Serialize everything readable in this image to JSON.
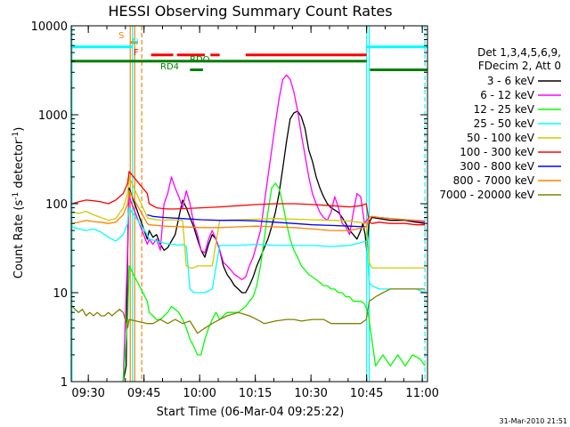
{
  "chart_data": {
    "type": "line",
    "title": "HESSI Observing Summary Count Rates",
    "xlabel": "Start Time (06-Mar-04 09:25:22)",
    "ylabel_main": "Count Rate (s",
    "ylabel_sup1": "-1",
    "ylabel_mid": " detector",
    "ylabel_sup2": "-1",
    "ylabel_end": ")",
    "x_unit": "minutes since 09:25:22",
    "xlim": [
      0,
      96
    ],
    "ylim": [
      1,
      10000
    ],
    "y_scale": "log",
    "grid": false,
    "x_ticks": [
      {
        "value": 4.6,
        "label": "09:30"
      },
      {
        "value": 19.6,
        "label": "09:45"
      },
      {
        "value": 34.6,
        "label": "10:00"
      },
      {
        "value": 49.6,
        "label": "10:15"
      },
      {
        "value": 64.6,
        "label": "10:30"
      },
      {
        "value": 79.6,
        "label": "10:45"
      },
      {
        "value": 94.6,
        "label": "11:00"
      }
    ],
    "y_ticks": [
      {
        "value": 1,
        "label": "1"
      },
      {
        "value": 10,
        "label": "10"
      },
      {
        "value": 100,
        "label": "100"
      },
      {
        "value": 1000,
        "label": "1000"
      },
      {
        "value": 10000,
        "label": "10000"
      }
    ],
    "legend": {
      "placement": "right",
      "header": [
        "Det 1,3,4,5,6,9,",
        "FDecim 2, Att 0"
      ],
      "entries": [
        {
          "label": "3 - 6 keV",
          "color": "#000000"
        },
        {
          "label": "6 - 12 keV",
          "color": "#ff00ff"
        },
        {
          "label": "12 - 25 keV",
          "color": "#00ff00"
        },
        {
          "label": "25 - 50 keV",
          "color": "#00ffff"
        },
        {
          "label": "50 - 100 keV",
          "color": "#cccc00"
        },
        {
          "label": "100 - 300 keV",
          "color": "#ff0000"
        },
        {
          "label": "300 - 800 keV",
          "color": "#0000ff"
        },
        {
          "label": "800 - 7000 keV",
          "color": "#ff8000"
        },
        {
          "label": "7000 - 20000 keV",
          "color": "#808000"
        }
      ]
    },
    "flags": [
      {
        "label": "S",
        "color": "#ff8000"
      },
      {
        "label": "N",
        "color": "#00ffff"
      },
      {
        "label": "F",
        "color": "#ff0000"
      },
      {
        "label": "RDO",
        "color": "#008000"
      },
      {
        "label": "RD4",
        "color": "#008000"
      }
    ],
    "flag_bars": {
      "N": {
        "color": "#00ffff",
        "y": 5800,
        "segments": [
          [
            0,
            16.5
          ],
          [
            79.6,
            96
          ]
        ]
      },
      "S": {
        "color": "#ff8000",
        "y": 6500,
        "segments": [
          [
            16.0,
            18.0
          ]
        ]
      },
      "F": {
        "color": "#ff0000",
        "y": 4700,
        "segments": [
          [
            21.5,
            27.5
          ],
          [
            28.5,
            36
          ],
          [
            37.5,
            40
          ],
          [
            47,
            79.6
          ]
        ]
      },
      "RDO": {
        "color": "#008000",
        "y": 4000,
        "segments": [
          [
            0,
            79.6
          ]
        ]
      },
      "RD4": {
        "color": "#008000",
        "y": 3200,
        "segments": [
          [
            32,
            35.5
          ],
          [
            80.5,
            96
          ]
        ]
      }
    },
    "vertical_lines": [
      {
        "x": 0.2,
        "color": "#00ffff",
        "dashed": false
      },
      {
        "x": 15.9,
        "color": "#ff8000",
        "dashed": false
      },
      {
        "x": 16.5,
        "color": "#00ffff",
        "dashed": false
      },
      {
        "x": 17.1,
        "color": "#ff8000",
        "dashed": false
      },
      {
        "x": 19.0,
        "color": "#ff8000",
        "dashed": true
      },
      {
        "x": 79.6,
        "color": "#00ffff",
        "dashed": false
      },
      {
        "x": 80.3,
        "color": "#00ffff",
        "dashed": false
      },
      {
        "x": 95.3,
        "color": "#00ffff",
        "dashed": true
      }
    ],
    "series": [
      {
        "name": "3 - 6 keV",
        "color": "#000000",
        "x": [
          14,
          14.8,
          15.3,
          15.6,
          20.5,
          21,
          22,
          23,
          24,
          25,
          26,
          27,
          28,
          29,
          30,
          31,
          32,
          33,
          34,
          35,
          36,
          37,
          38,
          39,
          40,
          41,
          42,
          43,
          44,
          45,
          46,
          47,
          48,
          49,
          50,
          51,
          52,
          53,
          54,
          55,
          56,
          57,
          58,
          59,
          60,
          61,
          62,
          63,
          64,
          65,
          66,
          67,
          68,
          69,
          70,
          71,
          72,
          73,
          74,
          75,
          76,
          77,
          78,
          78.6,
          79.2,
          79.6,
          80.2,
          81,
          83,
          86,
          90,
          93,
          95.3
        ],
        "y": [
          1,
          1.5,
          60,
          150,
          40,
          50,
          42,
          45,
          35,
          30,
          32,
          38,
          45,
          70,
          110,
          90,
          70,
          55,
          40,
          30,
          25,
          35,
          45,
          40,
          30,
          20,
          16,
          14,
          12,
          11,
          10,
          10,
          12,
          15,
          20,
          25,
          32,
          40,
          55,
          80,
          130,
          250,
          500,
          900,
          1050,
          1100,
          950,
          700,
          400,
          300,
          200,
          150,
          120,
          100,
          90,
          85,
          80,
          70,
          60,
          50,
          45,
          40,
          50,
          60,
          45,
          30,
          60,
          70,
          68,
          65,
          65,
          62,
          60
        ]
      },
      {
        "name": "6 - 12 keV",
        "color": "#ff00ff",
        "x": [
          14,
          15.2,
          15.6,
          20.5,
          21,
          22,
          23,
          24,
          25,
          26,
          27,
          28,
          29,
          30,
          31,
          32,
          33,
          34,
          35,
          36,
          37,
          38,
          39,
          40,
          41,
          42,
          43,
          44,
          45,
          46,
          47,
          48,
          49,
          50,
          51,
          52,
          53,
          54,
          55,
          56,
          57,
          58,
          59,
          60,
          61,
          62,
          63,
          64,
          65,
          66,
          67,
          68,
          69,
          70,
          71,
          72,
          73,
          74,
          75,
          76,
          77,
          78,
          79,
          80.2,
          81,
          83,
          86,
          90,
          93,
          95.3
        ],
        "y": [
          1,
          30,
          120,
          35,
          40,
          35,
          40,
          30,
          100,
          130,
          200,
          150,
          120,
          90,
          140,
          100,
          60,
          45,
          30,
          28,
          40,
          50,
          40,
          30,
          22,
          20,
          18,
          16,
          15,
          14,
          15,
          20,
          25,
          35,
          50,
          100,
          200,
          400,
          800,
          1500,
          2500,
          2800,
          2500,
          1800,
          1100,
          600,
          350,
          200,
          130,
          100,
          80,
          70,
          65,
          80,
          120,
          90,
          60,
          55,
          45,
          80,
          130,
          120,
          60,
          70,
          72,
          70,
          68,
          66,
          64,
          62
        ]
      },
      {
        "name": "12 - 25 keV",
        "color": "#00ff00",
        "x": [
          14,
          15.2,
          15.6,
          20.5,
          21,
          22,
          23,
          24,
          25,
          26,
          27,
          28,
          29,
          30,
          31,
          32,
          33,
          34,
          35,
          36,
          37,
          38,
          39,
          40,
          41,
          42,
          43,
          44,
          45,
          46,
          47,
          48,
          49,
          50,
          51,
          52,
          53,
          54,
          55,
          56,
          57,
          58,
          59,
          60,
          61,
          62,
          63,
          64,
          65,
          66,
          67,
          68,
          69,
          70,
          71,
          72,
          73,
          74,
          75,
          76,
          77,
          78,
          79,
          80,
          81,
          82,
          84,
          86,
          88,
          90,
          92,
          94,
          95.3
        ],
        "y": [
          1,
          5,
          20,
          8,
          6,
          5.5,
          5,
          5,
          5.5,
          6,
          7,
          6.5,
          6,
          5,
          4,
          3,
          2.5,
          2,
          2,
          3,
          4,
          5,
          6,
          5,
          5.5,
          6,
          6,
          6,
          6,
          6.5,
          7,
          8,
          9,
          12,
          20,
          40,
          80,
          150,
          170,
          150,
          100,
          60,
          40,
          30,
          25,
          20,
          18,
          16,
          15,
          14,
          13,
          12,
          12,
          11,
          11,
          10,
          10,
          9,
          9,
          8,
          8,
          8,
          7.5,
          6,
          3,
          1.5,
          2,
          1.5,
          2,
          1.5,
          2,
          1.8,
          1.5
        ]
      },
      {
        "name": "25 - 50 keV",
        "color": "#00ffff",
        "x": [
          0.3,
          2,
          4,
          6,
          8,
          10,
          12,
          14,
          15.2,
          15.6,
          20.5,
          21,
          23,
          25,
          27,
          28,
          29,
          30,
          31,
          32,
          33,
          34,
          36,
          38,
          40,
          45,
          50,
          55,
          60,
          65,
          70,
          75,
          79.5,
          80.3,
          81,
          83,
          86,
          90,
          93,
          95.3
        ],
        "y": [
          55,
          52,
          50,
          52,
          48,
          42,
          38,
          45,
          60,
          90,
          45,
          40,
          38,
          36,
          35,
          35,
          34,
          35,
          33,
          11,
          10,
          10,
          10,
          11,
          34,
          34,
          35,
          34,
          34,
          34,
          33,
          34,
          38,
          13,
          12,
          11,
          11,
          11,
          11,
          10
        ]
      },
      {
        "name": "50 - 100 keV",
        "color": "#cccc00",
        "x": [
          0.3,
          2,
          4,
          6,
          8,
          10,
          12,
          14,
          15.2,
          15.6,
          20.5,
          21,
          23,
          25,
          27,
          30,
          31,
          32,
          33,
          34,
          36,
          38,
          40,
          45,
          50,
          55,
          60,
          65,
          70,
          75,
          79.5,
          80.3,
          81,
          83,
          86,
          90,
          93,
          95.3
        ],
        "y": [
          80,
          78,
          82,
          75,
          70,
          65,
          68,
          90,
          130,
          200,
          70,
          68,
          66,
          65,
          66,
          65,
          20,
          19,
          19,
          20,
          20,
          20,
          65,
          66,
          67,
          68,
          67,
          66,
          65,
          64,
          60,
          22,
          19,
          19,
          19,
          19,
          19,
          19
        ]
      },
      {
        "name": "100 - 300 keV",
        "color": "#ff0000",
        "x": [
          0.3,
          2,
          4,
          6,
          8,
          10,
          12,
          14,
          15.2,
          15.6,
          20.5,
          21,
          23,
          25,
          27,
          30,
          35,
          40,
          45,
          50,
          55,
          60,
          65,
          70,
          75,
          78,
          79.5,
          80.3,
          81,
          83,
          86,
          90,
          93,
          95.3
        ],
        "y": [
          100,
          105,
          110,
          108,
          105,
          100,
          110,
          130,
          170,
          230,
          130,
          100,
          90,
          88,
          87,
          88,
          90,
          92,
          95,
          98,
          100,
          100,
          98,
          95,
          92,
          95,
          100,
          62,
          60,
          62,
          60,
          60,
          58,
          58
        ]
      },
      {
        "name": "300 - 800 keV",
        "color": "#0000ff",
        "x": [
          20.5,
          22,
          25,
          30,
          35,
          40,
          45,
          50,
          55,
          60,
          65,
          70,
          75,
          79.5
        ],
        "y": [
          75,
          72,
          70,
          68,
          66,
          65,
          65,
          64,
          62,
          60,
          58,
          57,
          56,
          55
        ]
      },
      {
        "name": "800 - 7000 keV",
        "color": "#ff8000",
        "x": [
          0.3,
          2,
          4,
          6,
          8,
          10,
          12,
          14,
          15.2,
          15.6,
          20.5,
          21,
          23,
          25,
          30,
          35,
          40,
          45,
          50,
          55,
          60,
          65,
          70,
          75,
          79.5,
          80.3,
          81,
          83,
          86,
          90,
          93,
          95.3
        ],
        "y": [
          60,
          62,
          65,
          63,
          62,
          60,
          62,
          75,
          100,
          140,
          60,
          58,
          57,
          56,
          55,
          54,
          54,
          55,
          56,
          55,
          54,
          52,
          50,
          50,
          55,
          70,
          72,
          70,
          68,
          66,
          65,
          64
        ]
      },
      {
        "name": "7000 - 20000 keV",
        "color": "#808000",
        "x": [
          0.3,
          1,
          2,
          3,
          4,
          5,
          6,
          7,
          8,
          9,
          10,
          11,
          12,
          13,
          14,
          15.2,
          15.6,
          20.5,
          22,
          24,
          26,
          28,
          30,
          32,
          34,
          36,
          38,
          40,
          42,
          45,
          48,
          50,
          52,
          55,
          58,
          60,
          62,
          65,
          68,
          70,
          72,
          75,
          78,
          79.5,
          80.3,
          82,
          84,
          86,
          88,
          90,
          92,
          95.3
        ],
        "y": [
          7,
          6.5,
          6,
          6.5,
          5.5,
          6,
          5.5,
          6,
          5.5,
          5.5,
          6,
          5.5,
          6,
          6.5,
          6,
          4,
          5,
          4.5,
          4.5,
          5,
          4.5,
          5,
          4.5,
          4.8,
          3.5,
          4,
          4.5,
          5,
          5.5,
          6,
          5.5,
          5,
          4.5,
          4.8,
          5,
          5,
          4.8,
          5,
          5,
          4.5,
          4.5,
          4.5,
          4.5,
          5,
          8,
          9,
          10,
          11,
          11,
          11,
          11,
          11
        ]
      }
    ]
  },
  "footer": {
    "timestamp": "31-Mar-2010 21:51"
  }
}
